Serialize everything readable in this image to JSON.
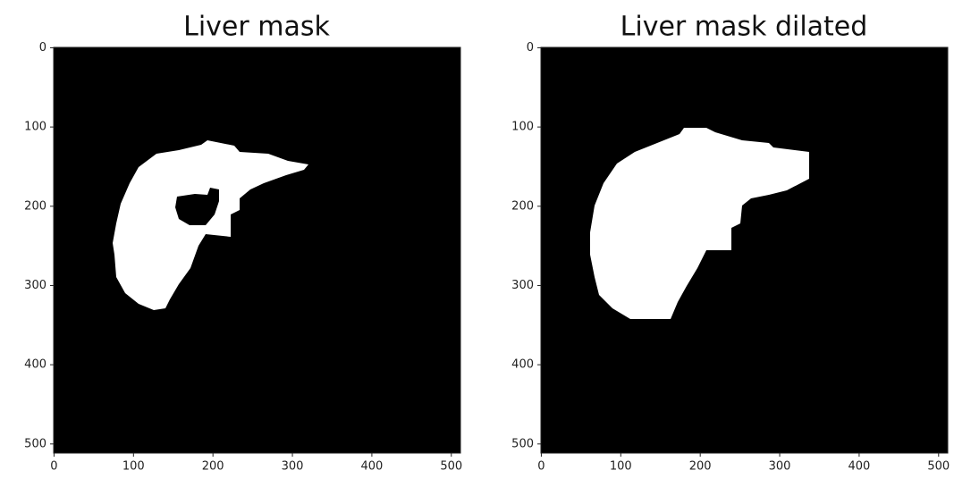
{
  "chart_data": [
    {
      "type": "image",
      "title": "Liver mask",
      "xlim": [
        -0.5,
        511.5
      ],
      "ylim": [
        511.5,
        -0.5
      ],
      "xticks": [
        0,
        100,
        200,
        300,
        400,
        500
      ],
      "yticks": [
        0,
        100,
        200,
        300,
        400,
        500
      ]
    },
    {
      "type": "image",
      "title": "Liver mask dilated",
      "xlim": [
        -0.5,
        511.5
      ],
      "ylim": [
        511.5,
        -0.5
      ],
      "xticks": [
        0,
        100,
        200,
        300,
        400,
        500
      ],
      "yticks": [
        0,
        100,
        200,
        300,
        400,
        500
      ]
    }
  ]
}
